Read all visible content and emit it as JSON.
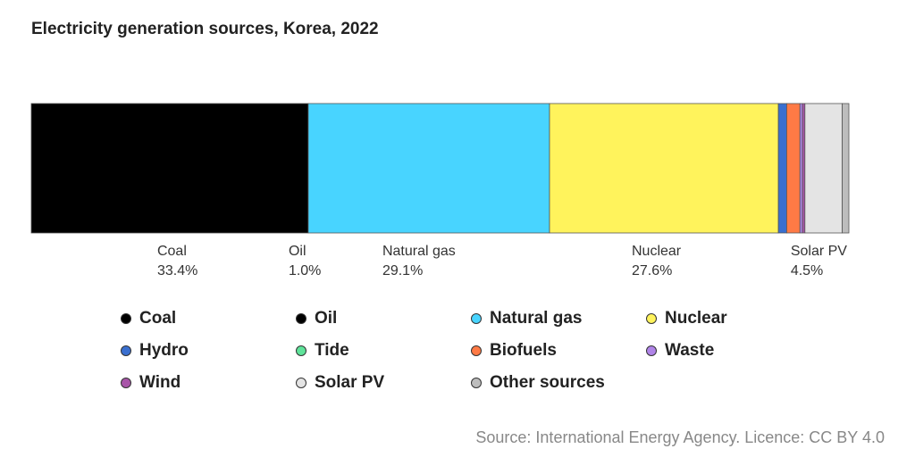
{
  "chart_data": {
    "type": "bar",
    "orientation": "horizontal-stacked",
    "title": "Electricity generation sources, Korea, 2022",
    "series": [
      {
        "name": "Coal",
        "value": 33.4,
        "color": "#000000",
        "label": "33.4%"
      },
      {
        "name": "Natural gas",
        "value": 29.1,
        "color": "#48d4ff",
        "label": "29.1%"
      },
      {
        "name": "Nuclear",
        "value": 27.6,
        "color": "#fff35c",
        "label": "27.6%"
      },
      {
        "name": "Hydro",
        "value": 1.0,
        "color": "#3a6fcf",
        "label": ""
      },
      {
        "name": "Biofuels",
        "value": 1.6,
        "color": "#ff7a45",
        "label": ""
      },
      {
        "name": "Waste",
        "value": 0.3,
        "color": "#b084e8",
        "label": ""
      },
      {
        "name": "Wind",
        "value": 0.3,
        "color": "#a855a8",
        "label": ""
      },
      {
        "name": "Solar PV",
        "value": 4.5,
        "color": "#e4e4e4",
        "label": "4.5%"
      },
      {
        "name": "Other sources",
        "value": 0.8,
        "color": "#bdbdbd",
        "label": ""
      }
    ],
    "bar_labels": [
      {
        "name": "Coal",
        "value": "33.4%"
      },
      {
        "name": "Oil",
        "value": "1.0%"
      },
      {
        "name": "Natural gas",
        "value": "29.1%"
      },
      {
        "name": "Nuclear",
        "value": "27.6%"
      },
      {
        "name": "Solar PV",
        "value": "4.5%"
      }
    ],
    "legend": [
      {
        "name": "Coal",
        "color": "#000000"
      },
      {
        "name": "Oil",
        "color": "#000000"
      },
      {
        "name": "Natural gas",
        "color": "#48d4ff"
      },
      {
        "name": "Nuclear",
        "color": "#fff35c"
      },
      {
        "name": "Hydro",
        "color": "#3a6fcf"
      },
      {
        "name": "Tide",
        "color": "#5fe39a"
      },
      {
        "name": "Biofuels",
        "color": "#ff7a45"
      },
      {
        "name": "Waste",
        "color": "#b084e8"
      },
      {
        "name": "Wind",
        "color": "#a855a8"
      },
      {
        "name": "Solar PV",
        "color": "#e4e4e4"
      },
      {
        "name": "Other sources",
        "color": "#bdbdbd"
      }
    ],
    "legend_placement": "bottom",
    "grid": false
  },
  "source": "Source: International Energy Agency. Licence: CC BY 4.0"
}
